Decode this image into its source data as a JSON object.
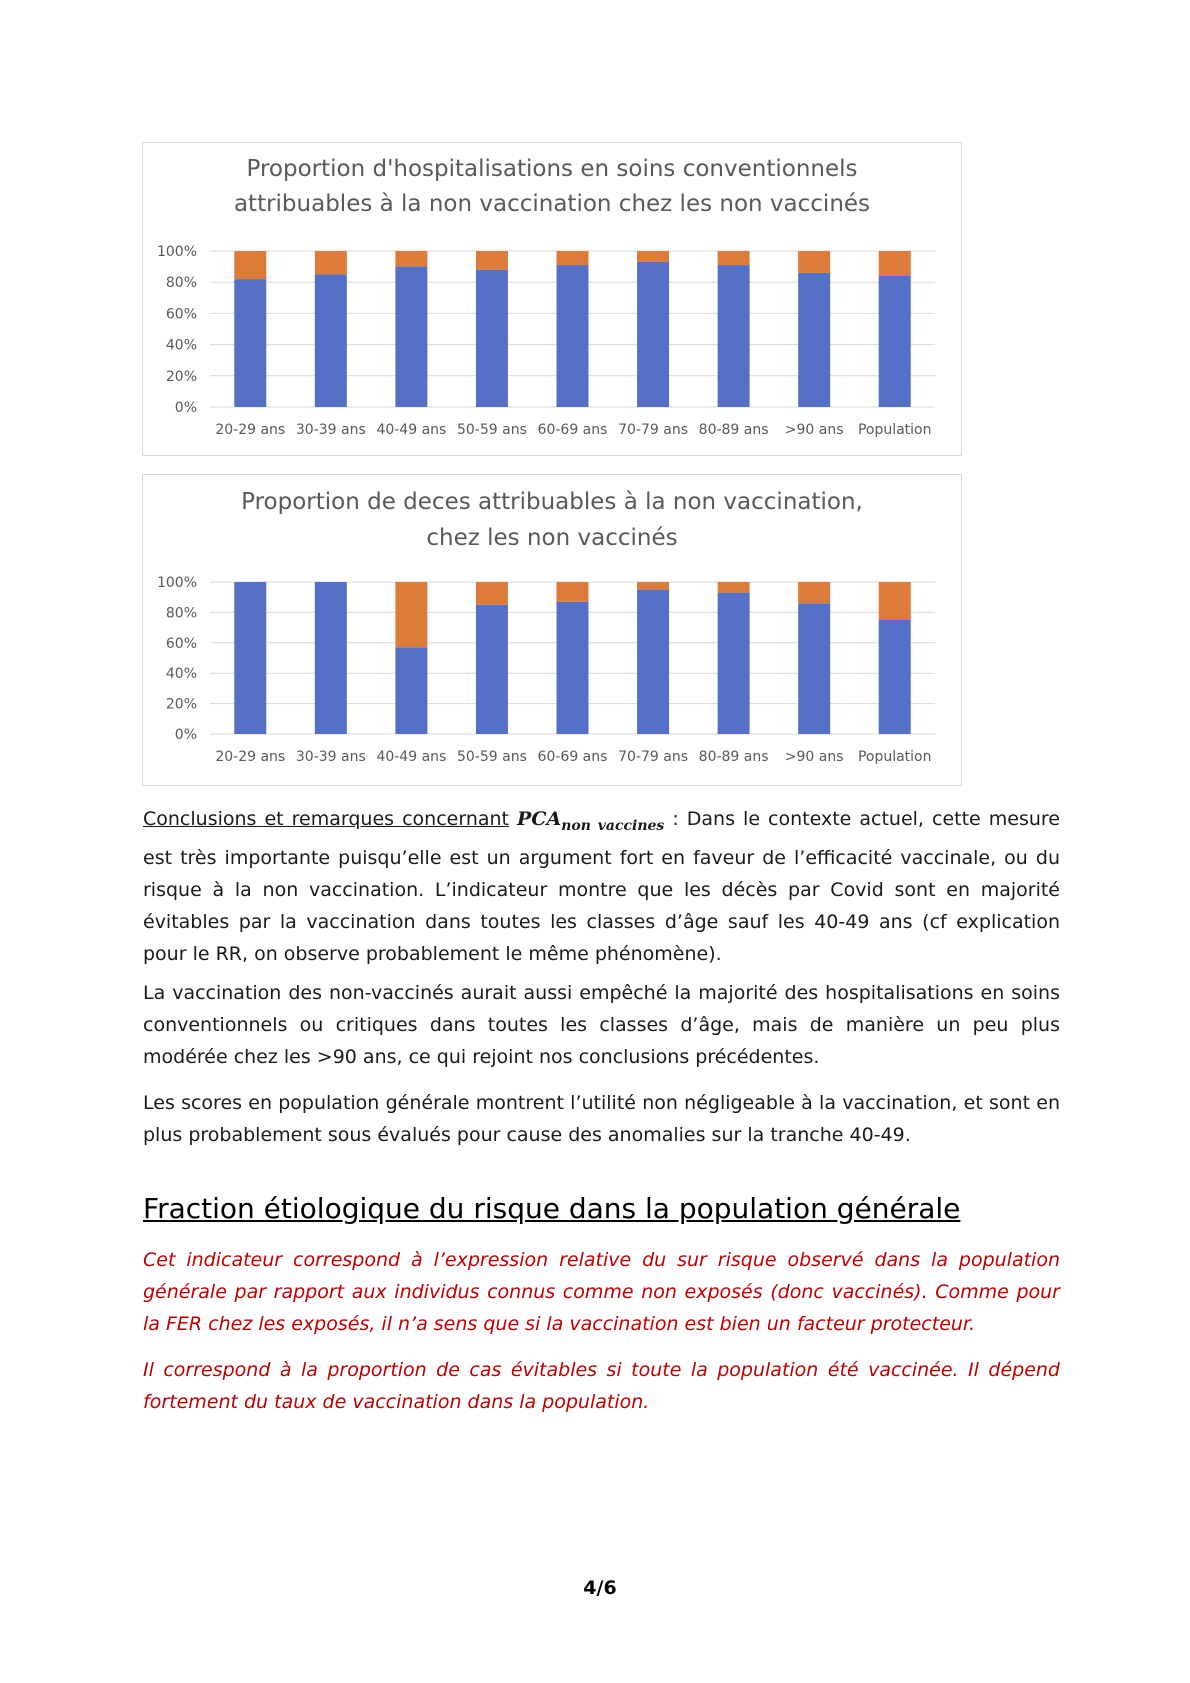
{
  "colors": {
    "vaccinable_share": "#5470c6",
    "remaining_share": "#dd7c3a",
    "grid": "#d9d9d9"
  },
  "chart_data": [
    {
      "type": "bar",
      "stacked": true,
      "title_lines": [
        "Proportion d'hospitalisations en soins conventionnels",
        "attribuables à la non vaccination chez les non vaccinés"
      ],
      "categories": [
        "20-29 ans",
        "30-39 ans",
        "40-49 ans",
        "50-59 ans",
        "60-69 ans",
        "70-79 ans",
        "80-89 ans",
        ">90 ans",
        "Population"
      ],
      "y_ticks": [
        "0%",
        "20%",
        "40%",
        "60%",
        "80%",
        "100%"
      ],
      "ylim": [
        0,
        100
      ],
      "grid": true,
      "legend": "none",
      "series": [
        {
          "values": [
            82,
            85,
            90,
            88,
            91,
            93,
            91,
            86,
            84
          ]
        },
        {
          "values": [
            18,
            15,
            10,
            12,
            9,
            7,
            9,
            14,
            16
          ]
        }
      ]
    },
    {
      "type": "bar",
      "stacked": true,
      "title_lines": [
        "Proportion de deces attribuables à la non vaccination,",
        "chez les non vaccinés"
      ],
      "categories": [
        "20-29 ans",
        "30-39 ans",
        "40-49 ans",
        "50-59 ans",
        "60-69 ans",
        "70-79 ans",
        "80-89 ans",
        ">90 ans",
        "Population"
      ],
      "y_ticks": [
        "0%",
        "20%",
        "40%",
        "60%",
        "80%",
        "100%"
      ],
      "ylim": [
        0,
        100
      ],
      "grid": true,
      "legend": "none",
      "series": [
        {
          "values": [
            100,
            100,
            57,
            85,
            87,
            95,
            93,
            86,
            75
          ]
        },
        {
          "values": [
            0,
            0,
            43,
            15,
            13,
            5,
            7,
            14,
            25
          ]
        }
      ]
    }
  ],
  "body": {
    "p1_label": "Conclusions et remarques concernant",
    "p1_formula_main": "PCA",
    "p1_formula_sub": "non vaccines",
    "p1_text": " : Dans le contexte actuel, cette mesure est très importante puisqu’elle est un argument fort en faveur de l’efficacité vaccinale, ou du risque à la non vaccination. L’indicateur montre que les décès par Covid sont en majorité évitables par la vaccination dans toutes les classes d’âge sauf les 40-49 ans (cf explication pour le RR, on observe probablement le même phénomène).",
    "p2": "La vaccination des non-vaccinés aurait aussi empêché la majorité des hospitalisations en soins conventionnels ou critiques dans toutes les classes d’âge, mais de manière un peu plus modérée chez les >90 ans, ce qui rejoint nos conclusions précédentes.",
    "p3": "Les scores en population générale montrent l’utilité non négligeable à la vaccination, et sont en plus probablement sous évalués pour cause des anomalies sur la tranche 40-49.",
    "section_heading": "Fraction étiologique du risque dans la population générale",
    "red_p1": "Cet indicateur correspond à l’expression relative du sur risque observé dans la population générale par rapport aux individus connus comme non exposés (donc vaccinés). Comme pour la FER chez les exposés, il n’a sens que si la vaccination est bien un facteur protecteur.",
    "red_p2": "Il correspond à la proportion de cas évitables si toute la population été vaccinée. Il dépend fortement du taux de vaccination dans la population."
  },
  "page_number": "4/6"
}
